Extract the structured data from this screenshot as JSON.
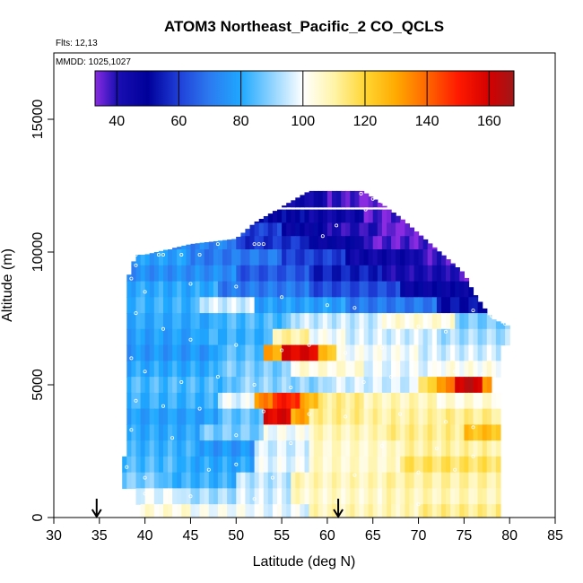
{
  "header": {
    "title": "ATOM3 Northeast_Pacific_2 CO_QCLS",
    "flights": "Flts: 12,13",
    "mmdd": "MMDD: 1025,1027"
  },
  "chart_data": {
    "type": "heatmap",
    "title": "ATOM3 Northeast_Pacific_2 CO_QCLS",
    "xlabel": "Latitude (deg N)",
    "ylabel": "Altitude (m)",
    "xlim": [
      30,
      85
    ],
    "ylim": [
      0,
      17500
    ],
    "x_ticks": [
      "30",
      "35",
      "40",
      "45",
      "50",
      "55",
      "60",
      "65",
      "70",
      "75",
      "80",
      "85"
    ],
    "y_ticks": [
      "0",
      "5000",
      "10000",
      "15000"
    ],
    "colorbar": {
      "range": [
        33,
        168
      ],
      "ticks": [
        "40",
        "60",
        "80",
        "100",
        "120",
        "140",
        "160"
      ],
      "stops": [
        {
          "v": 33,
          "color": "#8a2be2"
        },
        {
          "v": 40,
          "color": "#1a0fb3"
        },
        {
          "v": 50,
          "color": "#00009a"
        },
        {
          "v": 60,
          "color": "#1f3fd8"
        },
        {
          "v": 70,
          "color": "#2c7bf0"
        },
        {
          "v": 80,
          "color": "#1ea8ff"
        },
        {
          "v": 90,
          "color": "#8fd3ff"
        },
        {
          "v": 100,
          "color": "#ffffff"
        },
        {
          "v": 110,
          "color": "#fff4a8"
        },
        {
          "v": 120,
          "color": "#ffd633"
        },
        {
          "v": 130,
          "color": "#ffaa00"
        },
        {
          "v": 140,
          "color": "#ff6600"
        },
        {
          "v": 150,
          "color": "#ff1a00"
        },
        {
          "v": 160,
          "color": "#d40000"
        },
        {
          "v": 168,
          "color": "#a01818"
        }
      ]
    },
    "column_tops": [
      [
        38,
        8900
      ],
      [
        39,
        9900
      ],
      [
        40,
        9900
      ],
      [
        45,
        10300
      ],
      [
        50,
        10500
      ],
      [
        52,
        11100
      ],
      [
        55,
        11700
      ],
      [
        58,
        12300
      ],
      [
        63,
        12500
      ],
      [
        66,
        11800
      ],
      [
        68,
        11300
      ],
      [
        70,
        10700
      ],
      [
        72,
        10100
      ],
      [
        75,
        9200
      ],
      [
        76,
        8500
      ],
      [
        78,
        7500
      ],
      [
        80,
        7200
      ]
    ],
    "column_bottoms": [
      [
        37.5,
        1300
      ],
      [
        38.5,
        1000
      ],
      [
        39.5,
        400
      ],
      [
        40,
        0
      ],
      [
        81,
        0
      ]
    ],
    "layers": [
      {
        "alt": 12000,
        "segments": [
          [
            51,
            60,
            44
          ],
          [
            60,
            63,
            38
          ],
          [
            63,
            68,
            34
          ]
        ]
      },
      {
        "alt": 11300,
        "segments": [
          [
            52,
            58,
            50
          ],
          [
            58,
            64,
            45
          ],
          [
            64,
            68,
            36
          ],
          [
            68,
            70,
            33
          ]
        ]
      },
      {
        "alt": 10800,
        "segments": [
          [
            48,
            55,
            60
          ],
          [
            55,
            60,
            48
          ],
          [
            60,
            66,
            40
          ],
          [
            66,
            71,
            33
          ]
        ]
      },
      {
        "alt": 10300,
        "segments": [
          [
            43,
            50,
            72
          ],
          [
            50,
            58,
            58
          ],
          [
            58,
            64,
            48
          ],
          [
            64,
            72,
            36
          ]
        ]
      },
      {
        "alt": 9800,
        "segments": [
          [
            38,
            45,
            78
          ],
          [
            45,
            55,
            70
          ],
          [
            55,
            62,
            60
          ],
          [
            62,
            70,
            45
          ],
          [
            70,
            74,
            38
          ]
        ]
      },
      {
        "alt": 9200,
        "segments": [
          [
            38,
            50,
            74
          ],
          [
            50,
            58,
            64
          ],
          [
            58,
            66,
            55
          ],
          [
            66,
            74,
            42
          ],
          [
            74,
            76,
            36
          ]
        ]
      },
      {
        "alt": 8600,
        "segments": [
          [
            38,
            48,
            80
          ],
          [
            48,
            58,
            70
          ],
          [
            58,
            68,
            62
          ],
          [
            68,
            78,
            48
          ]
        ]
      },
      {
        "alt": 8000,
        "segments": [
          [
            38,
            46,
            82
          ],
          [
            46,
            52,
            96
          ],
          [
            52,
            62,
            78
          ],
          [
            62,
            72,
            70
          ],
          [
            72,
            79,
            52
          ]
        ]
      },
      {
        "alt": 7400,
        "segments": [
          [
            38,
            48,
            80
          ],
          [
            48,
            56,
            84
          ],
          [
            56,
            66,
            95
          ],
          [
            66,
            74,
            104
          ],
          [
            74,
            80,
            88
          ]
        ]
      },
      {
        "alt": 6800,
        "segments": [
          [
            38,
            46,
            78
          ],
          [
            46,
            54,
            82
          ],
          [
            54,
            58,
            110
          ],
          [
            58,
            62,
            100
          ],
          [
            62,
            72,
            96
          ],
          [
            72,
            80,
            92
          ]
        ]
      },
      {
        "alt": 6200,
        "segments": [
          [
            38,
            48,
            76
          ],
          [
            48,
            53,
            85
          ],
          [
            53,
            55,
            130
          ],
          [
            55,
            59,
            158
          ],
          [
            59,
            61,
            125
          ],
          [
            61,
            70,
            100
          ],
          [
            70,
            79,
            96
          ]
        ]
      },
      {
        "alt": 5600,
        "segments": [
          [
            38,
            48,
            80
          ],
          [
            48,
            56,
            88
          ],
          [
            56,
            64,
            104
          ],
          [
            64,
            72,
            98
          ],
          [
            72,
            79,
            102
          ]
        ]
      },
      {
        "alt": 5000,
        "segments": [
          [
            38,
            50,
            84
          ],
          [
            50,
            60,
            90
          ],
          [
            60,
            70,
            96
          ],
          [
            70,
            72,
            118
          ],
          [
            72,
            74,
            135
          ],
          [
            74,
            77,
            162
          ],
          [
            77,
            78,
            130
          ]
        ]
      },
      {
        "alt": 4400,
        "segments": [
          [
            38,
            48,
            82
          ],
          [
            48,
            52,
            98
          ],
          [
            52,
            54,
            135
          ],
          [
            54,
            57,
            150
          ],
          [
            57,
            59,
            128
          ],
          [
            59,
            64,
            112
          ],
          [
            64,
            72,
            108
          ],
          [
            72,
            79,
            104
          ]
        ]
      },
      {
        "alt": 3800,
        "segments": [
          [
            38,
            48,
            78
          ],
          [
            48,
            53,
            86
          ],
          [
            53,
            56,
            158
          ],
          [
            56,
            58,
            130
          ],
          [
            58,
            64,
            112
          ],
          [
            64,
            72,
            110
          ],
          [
            72,
            79,
            112
          ]
        ]
      },
      {
        "alt": 3200,
        "segments": [
          [
            38,
            46,
            80
          ],
          [
            46,
            53,
            88
          ],
          [
            53,
            58,
            100
          ],
          [
            58,
            66,
            108
          ],
          [
            66,
            75,
            112
          ],
          [
            75,
            79,
            125
          ]
        ]
      },
      {
        "alt": 2600,
        "segments": [
          [
            38,
            46,
            82
          ],
          [
            46,
            52,
            76
          ],
          [
            52,
            58,
            96
          ],
          [
            58,
            68,
            106
          ],
          [
            68,
            79,
            110
          ]
        ]
      },
      {
        "alt": 2000,
        "segments": [
          [
            37.5,
            44,
            84
          ],
          [
            44,
            52,
            80
          ],
          [
            52,
            58,
            98
          ],
          [
            58,
            68,
            106
          ],
          [
            68,
            79,
            116
          ]
        ]
      },
      {
        "alt": 1400,
        "segments": [
          [
            37.5,
            42,
            88
          ],
          [
            42,
            50,
            82
          ],
          [
            50,
            56,
            94
          ],
          [
            56,
            66,
            108
          ],
          [
            66,
            79,
            110
          ]
        ]
      },
      {
        "alt": 800,
        "segments": [
          [
            39,
            44,
            98
          ],
          [
            44,
            50,
            92
          ],
          [
            50,
            56,
            96
          ],
          [
            56,
            66,
            106
          ],
          [
            66,
            79,
            108
          ]
        ]
      },
      {
        "alt": 200,
        "segments": [
          [
            39.5,
            45,
            104
          ],
          [
            45,
            52,
            100
          ],
          [
            52,
            58,
            98
          ],
          [
            58,
            70,
            108
          ],
          [
            70,
            79,
            112
          ]
        ]
      }
    ],
    "sample_points": [
      [
        63.7,
        12200
      ],
      [
        65,
        12000
      ],
      [
        66,
        11900
      ],
      [
        64.2,
        11600
      ],
      [
        61,
        11000
      ],
      [
        59.5,
        10600
      ],
      [
        53,
        10300
      ],
      [
        52.5,
        10300
      ],
      [
        52,
        10300
      ],
      [
        48,
        10300
      ],
      [
        46,
        9900
      ],
      [
        44,
        9900
      ],
      [
        42,
        9900
      ],
      [
        41.5,
        9900
      ],
      [
        39,
        9900
      ],
      [
        38.5,
        9000
      ],
      [
        39,
        9500
      ],
      [
        40,
        8500
      ],
      [
        45,
        8800
      ],
      [
        50,
        8700
      ],
      [
        55,
        8300
      ],
      [
        60,
        8000
      ],
      [
        63,
        7900
      ],
      [
        39,
        7700
      ],
      [
        42,
        7100
      ],
      [
        45,
        6700
      ],
      [
        50,
        6500
      ],
      [
        55,
        6300
      ],
      [
        58,
        6500
      ],
      [
        62,
        6200
      ],
      [
        66,
        6400
      ],
      [
        70,
        7200
      ],
      [
        73,
        7000
      ],
      [
        76,
        7800
      ],
      [
        78,
        7600
      ],
      [
        79.5,
        7300
      ],
      [
        38.5,
        6000
      ],
      [
        40,
        5500
      ],
      [
        44,
        5100
      ],
      [
        48,
        5300
      ],
      [
        52,
        5000
      ],
      [
        56,
        4900
      ],
      [
        64,
        5100
      ],
      [
        67,
        5300
      ],
      [
        74,
        5500
      ],
      [
        77,
        5400
      ],
      [
        39,
        4400
      ],
      [
        42,
        4200
      ],
      [
        46,
        4100
      ],
      [
        53,
        4000
      ],
      [
        58,
        3900
      ],
      [
        62,
        3800
      ],
      [
        68,
        3900
      ],
      [
        73,
        3600
      ],
      [
        76,
        3400
      ],
      [
        38.5,
        3300
      ],
      [
        43,
        3000
      ],
      [
        50,
        3100
      ],
      [
        56,
        2800
      ],
      [
        66,
        2700
      ],
      [
        72,
        2600
      ],
      [
        76,
        2300
      ],
      [
        38,
        1900
      ],
      [
        40,
        1500
      ],
      [
        47,
        1800
      ],
      [
        50,
        2000
      ],
      [
        54,
        1500
      ],
      [
        63,
        1600
      ],
      [
        70,
        1700
      ],
      [
        74,
        1800
      ],
      [
        40,
        900
      ],
      [
        45,
        800
      ],
      [
        52,
        700
      ],
      [
        61,
        600
      ],
      [
        70,
        500
      ]
    ],
    "arrows_at_latitude": [
      34.7,
      61.2
    ]
  }
}
